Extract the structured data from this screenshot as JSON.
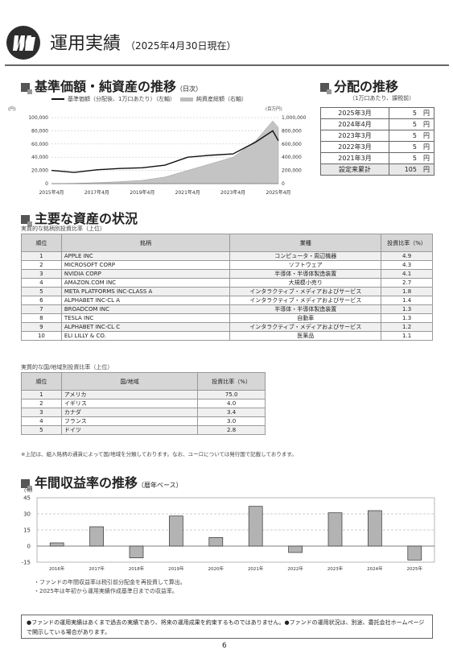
{
  "header": {
    "title": "運用実績",
    "date": "（2025年4月30日現在）"
  },
  "nav_chart": {
    "section_title": "基準価額・純資産の推移",
    "section_note": "（日次）",
    "legend_nav": "基準価額（分配後、1万口あたり）（左軸）",
    "legend_aum": "純資産総額（右軸）",
    "left_unit": "(円)",
    "right_unit": "(百万円)",
    "left_ticks": [
      "100,000",
      "80,000",
      "60,000",
      "40,000",
      "20,000",
      "0"
    ],
    "right_ticks": [
      "1,000,000",
      "800,000",
      "600,000",
      "400,000",
      "200,000",
      "0"
    ],
    "x_ticks": [
      "2015年4月",
      "2017年4月",
      "2019年4月",
      "2021年4月",
      "2023年4月",
      "2025年4月"
    ]
  },
  "dividends": {
    "section_title": "分配の推移",
    "note": "（1万口あたり、課税前）",
    "rows": [
      {
        "date": "2025年3月",
        "amount": "5　円"
      },
      {
        "date": "2024年4月",
        "amount": "5　円"
      },
      {
        "date": "2023年3月",
        "amount": "5　円"
      },
      {
        "date": "2022年3月",
        "amount": "5　円"
      },
      {
        "date": "2021年3月",
        "amount": "5　円"
      }
    ],
    "total_label": "設定来累計",
    "total_amount": "105　円"
  },
  "holdings": {
    "section_title": "主要な資産の状況",
    "table_caption": "実質的な銘柄別投資比率（上位）",
    "headers": [
      "順位",
      "銘柄",
      "業種",
      "投資比率（%）"
    ],
    "rows": [
      {
        "rank": "1",
        "name": "APPLE INC",
        "industry": "コンピュータ・周辺機器",
        "ratio": "4.9"
      },
      {
        "rank": "2",
        "name": "MICROSOFT CORP",
        "industry": "ソフトウェア",
        "ratio": "4.3"
      },
      {
        "rank": "3",
        "name": "NVIDIA CORP",
        "industry": "半導体・半導体製造装置",
        "ratio": "4.1"
      },
      {
        "rank": "4",
        "name": "AMAZON.COM INC",
        "industry": "大規模小売り",
        "ratio": "2.7"
      },
      {
        "rank": "5",
        "name": "META PLATFORMS INC-CLASS A",
        "industry": "インタラクティブ・メディアおよびサービス",
        "ratio": "1.8"
      },
      {
        "rank": "6",
        "name": "ALPHABET INC-CL A",
        "industry": "インタラクティブ・メディアおよびサービス",
        "ratio": "1.4"
      },
      {
        "rank": "7",
        "name": "BROADCOM INC",
        "industry": "半導体・半導体製造装置",
        "ratio": "1.3"
      },
      {
        "rank": "8",
        "name": "TESLA INC",
        "industry": "自動車",
        "ratio": "1.3"
      },
      {
        "rank": "9",
        "name": "ALPHABET INC-CL C",
        "industry": "インタラクティブ・メディアおよびサービス",
        "ratio": "1.2"
      },
      {
        "rank": "10",
        "name": "ELI LILLY & CO.",
        "industry": "医薬品",
        "ratio": "1.1"
      }
    ]
  },
  "countries": {
    "table_caption": "実質的な国/地域別投資比率（上位）",
    "headers": [
      "順位",
      "国/地域",
      "投資比率（%）"
    ],
    "rows": [
      {
        "rank": "1",
        "name": "アメリカ",
        "ratio": "75.0"
      },
      {
        "rank": "2",
        "name": "イギリス",
        "ratio": "4.0"
      },
      {
        "rank": "3",
        "name": "カナダ",
        "ratio": "3.4"
      },
      {
        "rank": "4",
        "name": "フランス",
        "ratio": "3.0"
      },
      {
        "rank": "5",
        "name": "ドイツ",
        "ratio": "2.8"
      }
    ],
    "note": "※上記は、組入銘柄の通貨によって国/地域を分類しております。なお、ユーロについては発行国で記載しております。"
  },
  "annual_returns": {
    "section_title": "年間収益率の推移",
    "section_note": "（暦年ベース）",
    "notes": [
      "・ファンドの年間収益率は税引前分配金を再投資して算出。",
      "・2025年は年初から運用実績作成基準日までの収益率。"
    ]
  },
  "chart_data": [
    {
      "type": "line",
      "title": "基準価額・純資産の推移",
      "x": [
        "2015年4月",
        "2016年4月",
        "2017年4月",
        "2018年4月",
        "2019年4月",
        "2020年4月",
        "2021年4月",
        "2022年4月",
        "2023年4月",
        "2024年4月",
        "2025年1月",
        "2025年4月"
      ],
      "series": [
        {
          "name": "基準価額（分配後、1万口あたり）（左軸）",
          "axis": "left",
          "values": [
            20000,
            17000,
            21000,
            23000,
            24000,
            28000,
            40000,
            43000,
            45000,
            63000,
            80000,
            65000
          ]
        },
        {
          "name": "純資産総額（右軸）",
          "axis": "right",
          "values": [
            0,
            5000,
            15000,
            30000,
            50000,
            100000,
            200000,
            300000,
            400000,
            650000,
            950000,
            850000
          ]
        }
      ],
      "ylim_left": [
        0,
        100000
      ],
      "ylim_right": [
        0,
        1000000
      ],
      "ylabel_left": "(円)",
      "ylabel_right": "(百万円)"
    },
    {
      "type": "bar",
      "title": "年間収益率の推移",
      "categories": [
        "2016年",
        "2017年",
        "2018年",
        "2019年",
        "2020年",
        "2021年",
        "2022年",
        "2023年",
        "2024年",
        "2025年"
      ],
      "values": [
        3,
        18,
        -11,
        28,
        8,
        37,
        -6,
        31,
        33,
        -13
      ],
      "ylabel": "(%)",
      "ylim": [
        -15,
        45
      ],
      "yticks": [
        "45",
        "30",
        "15",
        "0",
        "-15"
      ]
    }
  ],
  "footer": {
    "disclaimer": "●ファンドの運用実績はあくまで過去の実績であり、将来の運用成果を約束するものではありません。●ファンドの運用状況は、別途、委託会社ホームページで開示している場合があります。",
    "page_number": "6"
  }
}
